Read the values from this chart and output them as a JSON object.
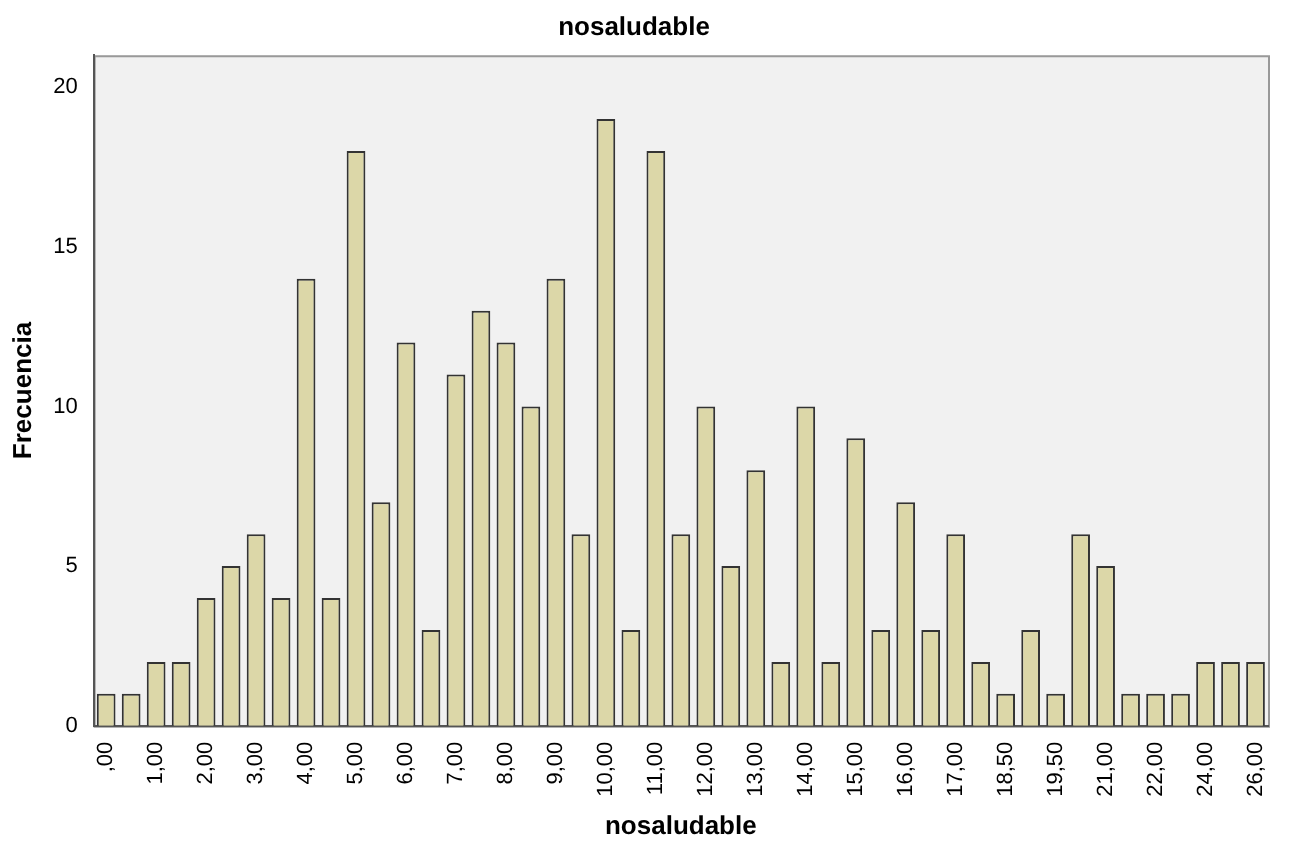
{
  "chart_data": {
    "type": "bar",
    "title": "nosaludable",
    "xlabel": "nosaludable",
    "ylabel": "Frecuencia",
    "categories": [
      ",00",
      null,
      "1,00",
      null,
      "2,00",
      null,
      "3,00",
      null,
      "4,00",
      null,
      "5,00",
      null,
      "6,00",
      null,
      "7,00",
      null,
      "8,00",
      null,
      "9,00",
      null,
      "10,00",
      null,
      "11,00",
      null,
      "12,00",
      null,
      "13,00",
      null,
      "14,00",
      null,
      "15,00",
      null,
      "16,00",
      null,
      "17,00",
      null,
      "18,50",
      null,
      "19,50",
      null,
      "21,00",
      null,
      "22,00",
      null,
      "24,00",
      null,
      "26,00"
    ],
    "values": [
      1,
      1,
      2,
      2,
      4,
      5,
      6,
      4,
      14,
      4,
      18,
      7,
      12,
      3,
      11,
      13,
      12,
      10,
      14,
      6,
      19,
      3,
      18,
      6,
      10,
      5,
      8,
      2,
      10,
      2,
      9,
      3,
      7,
      3,
      6,
      2,
      1,
      3,
      1,
      6,
      5,
      1,
      1,
      1,
      2,
      2,
      2
    ],
    "color": "#dcd7a8",
    "ylim": [
      0,
      21
    ],
    "yticks": [
      0,
      5,
      10,
      15,
      20
    ],
    "grid": false,
    "legend": false
  }
}
